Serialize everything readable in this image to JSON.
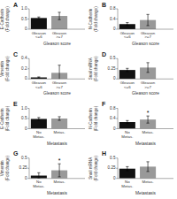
{
  "chart_data": [
    {
      "type": "bar",
      "title": "A",
      "categories": [
        "Gleason\n<=6",
        "Gleason\n>=7"
      ],
      "values": [
        0.55,
        0.65
      ],
      "errors": [
        0.05,
        0.18
      ],
      "colors": [
        "#111111",
        "#999999"
      ],
      "x_label": "Gleason score",
      "y_label": "E-Cadherin\n(Fold change)",
      "ylim": [
        0,
        1.0
      ],
      "yticks": [
        0,
        0.5,
        {
          "value": 1.0,
          "label": "1.0"
        }
      ]
    },
    {
      "type": "bar",
      "title": "B",
      "categories": [
        "Gleason\n<=6",
        "Gleason\n>=7"
      ],
      "values": [
        0.2,
        0.36
      ],
      "errors": [
        0.06,
        0.22
      ],
      "colors": [
        "#111111",
        "#999999"
      ],
      "x_label": "Gleason score",
      "y_label": "N-Cadherin\n(Fold change)",
      "ylim": [
        0,
        0.8
      ],
      "yticks": [
        0,
        0.4,
        0.8
      ]
    },
    {
      "type": "bar",
      "title": "C",
      "categories": [
        "Gleason\n<=6",
        "Gleason\n>=7"
      ],
      "values": [
        0.03,
        0.12
      ],
      "errors": [
        0.01,
        0.15
      ],
      "colors": [
        "#111111",
        "#999999"
      ],
      "x_label": "Gleason score",
      "y_label": "Vimentin\n(Fold change)",
      "ylim": [
        0,
        0.4
      ],
      "yticks": [
        0,
        0.2,
        0.4
      ]
    },
    {
      "type": "bar",
      "title": "D",
      "categories": [
        "Gleason\n<=6",
        "Gleason\n>=7"
      ],
      "values": [
        0.22,
        0.28
      ],
      "errors": [
        0.04,
        0.12
      ],
      "colors": [
        "#111111",
        "#999999"
      ],
      "x_label": "Gleason score",
      "y_label": "Snail mRNA\n(Fold change)",
      "ylim": [
        0,
        0.5
      ],
      "yticks": [
        0,
        0.25,
        0.5
      ]
    },
    {
      "type": "bar",
      "title": "E",
      "categories": [
        "No\nMetas.",
        "Metas."
      ],
      "values": [
        0.48,
        0.5
      ],
      "errors": [
        0.07,
        0.09
      ],
      "colors": [
        "#111111",
        "#999999"
      ],
      "x_label": "Metastasis",
      "y_label": "E-Cadherin\n(Fold change)",
      "ylim": [
        0,
        1.0
      ],
      "yticks": [
        0,
        0.5,
        {
          "value": 1.0,
          "label": "1.0"
        }
      ]
    },
    {
      "type": "bar",
      "title": "F",
      "categories": [
        "No\nMetas.",
        "Metas."
      ],
      "values": [
        0.26,
        0.36
      ],
      "errors": [
        0.06,
        0.14
      ],
      "colors": [
        "#111111",
        "#999999"
      ],
      "x_label": "Metastasis",
      "y_label": "N-Cadherin\n(Fold change)",
      "ylim": [
        0,
        0.8
      ],
      "yticks": [
        0,
        0.4,
        0.8
      ],
      "annotations": [
        {
          "text": "*",
          "x": "Metas."
        }
      ]
    },
    {
      "type": "bar",
      "title": "G",
      "categories": [
        "No\nMetas.",
        "Metas."
      ],
      "values": [
        0.07,
        0.2
      ],
      "errors": [
        0.07,
        0.16
      ],
      "colors": [
        "#111111",
        "#999999"
      ],
      "x_label": "Metastasis",
      "y_label": "Vimentin\n(Fold change)",
      "ylim": [
        0,
        0.5
      ],
      "yticks": [
        0,
        0.25,
        0.5
      ],
      "annotations": [
        {
          "text": "*",
          "x": "Metas."
        }
      ]
    },
    {
      "type": "bar",
      "title": "H",
      "categories": [
        "No\nMetas.",
        "Metas."
      ],
      "values": [
        0.24,
        0.29
      ],
      "errors": [
        0.05,
        0.12
      ],
      "colors": [
        "#111111",
        "#999999"
      ],
      "x_label": "Metastasis",
      "y_label": "Snail mRNA\n(Fold change)",
      "ylim": [
        0,
        0.5
      ],
      "yticks": [
        0,
        0.25,
        0.5
      ]
    }
  ]
}
